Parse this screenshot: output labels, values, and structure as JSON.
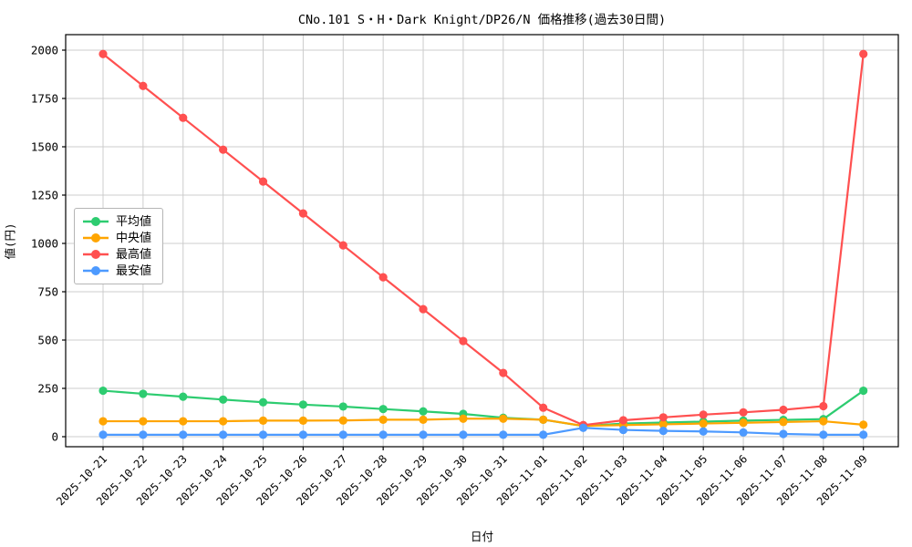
{
  "figure": {
    "title": "CNo.101 S・H・Dark Knight/DP26/N 価格推移(過去30日間)",
    "xlabel": "日付",
    "ylabel": "値(円)"
  },
  "chart_data": {
    "type": "line",
    "title": "CNo.101 S・H・Dark Knight/DP26/N 価格推移(過去30日間)",
    "xlabel": "日付",
    "ylabel": "値(円)",
    "grid": true,
    "legend_position": "center-left",
    "ylim": [
      -52,
      2080
    ],
    "yticks": [
      0,
      250,
      500,
      750,
      1000,
      1250,
      1500,
      1750,
      2000
    ],
    "x": [
      "2025-10-21",
      "2025-10-22",
      "2025-10-23",
      "2025-10-24",
      "2025-10-25",
      "2025-10-26",
      "2025-10-27",
      "2025-10-28",
      "2025-10-29",
      "2025-10-30",
      "2025-10-31",
      "2025-11-01",
      "2025-11-02",
      "2025-11-03",
      "2025-11-04",
      "2025-11-05",
      "2025-11-06",
      "2025-11-07",
      "2025-11-08",
      "2025-11-09"
    ],
    "series": [
      {
        "key": "average",
        "name": "平均値",
        "color": "#2dcc70",
        "values": [
          238,
          222,
          207,
          192,
          178,
          166,
          156,
          143,
          131,
          118,
          98,
          88,
          55,
          68,
          73,
          78,
          83,
          87,
          91,
          238
        ]
      },
      {
        "key": "median",
        "name": "中央値",
        "color": "#ffa500",
        "values": [
          80,
          80,
          80,
          80,
          83,
          83,
          84,
          88,
          88,
          93,
          93,
          88,
          56,
          60,
          64,
          68,
          72,
          76,
          80,
          62
        ]
      },
      {
        "key": "max",
        "name": "最高値",
        "color": "#ff5050",
        "values": [
          1980,
          1815,
          1650,
          1485,
          1320,
          1155,
          990,
          825,
          660,
          495,
          330,
          150,
          60,
          85,
          100,
          114,
          126,
          139,
          158,
          1980
        ]
      },
      {
        "key": "min",
        "name": "最安値",
        "color": "#4d9aff",
        "values": [
          10,
          10,
          10,
          10,
          10,
          10,
          10,
          10,
          10,
          10,
          10,
          10,
          46,
          35,
          30,
          27,
          22,
          14,
          10,
          10
        ]
      }
    ]
  }
}
